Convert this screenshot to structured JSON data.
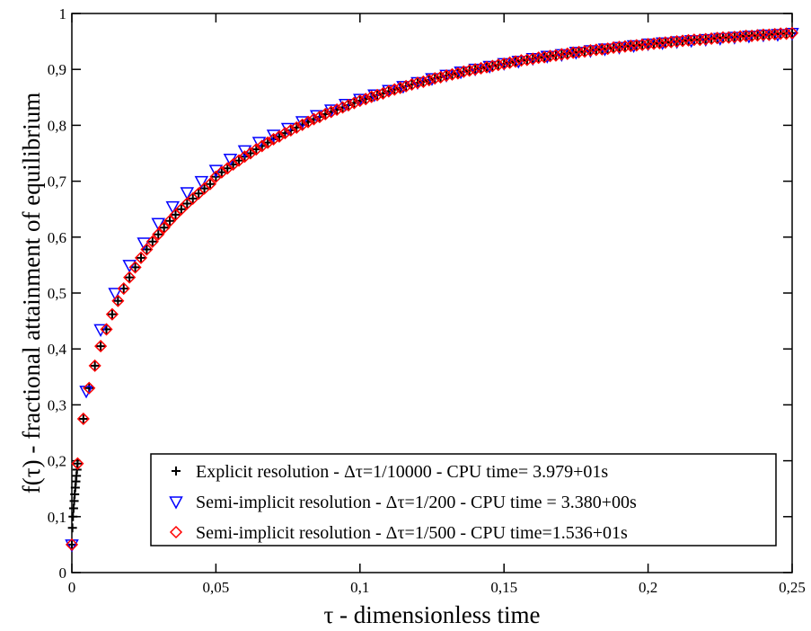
{
  "chart_data": {
    "type": "scatter",
    "x_label": "τ - dimensionless time",
    "y_label": "f(τ) - fractional attainment of equilibrium",
    "xlim": [
      0,
      0.25
    ],
    "ylim": [
      0,
      1
    ],
    "xticks": [
      0,
      {
        "value": 0.05,
        "label": "0,05"
      },
      {
        "value": 0.1,
        "label": "0,1"
      },
      {
        "value": 0.15,
        "label": "0,15"
      },
      {
        "value": 0.2,
        "label": "0,2"
      },
      {
        "value": 0.25,
        "label": "0,25"
      }
    ],
    "yticks": [
      0,
      {
        "value": 0.1,
        "label": "0,1"
      },
      {
        "value": 0.2,
        "label": "0,2"
      },
      {
        "value": 0.3,
        "label": "0,3"
      },
      {
        "value": 0.4,
        "label": "0,4"
      },
      {
        "value": 0.5,
        "label": "0,5"
      },
      {
        "value": 0.6,
        "label": "0,6"
      },
      {
        "value": 0.7,
        "label": "0,7"
      },
      {
        "value": 0.8,
        "label": "0,8"
      },
      {
        "value": 0.9,
        "label": "0,9"
      },
      1
    ],
    "series": [
      {
        "name": "Explicit resolution - Δτ=1/10000 - CPU time= 3.979+01s",
        "color": "#000000",
        "marker": "plus",
        "x": [
          0,
          0.0002,
          0.0004,
          0.0006,
          0.0008,
          0.001,
          0.0012,
          0.0014,
          0.0016,
          0.0018,
          0.002,
          0.004,
          0.006,
          0.008,
          0.01,
          0.012,
          0.014,
          0.016,
          0.018,
          0.02,
          0.022,
          0.024,
          0.026,
          0.028,
          0.03,
          0.032,
          0.034,
          0.036,
          0.038,
          0.04,
          0.042,
          0.044,
          0.046,
          0.048,
          0.05,
          0.052,
          0.054,
          0.056,
          0.058,
          0.06,
          0.062,
          0.064,
          0.066,
          0.068,
          0.07,
          0.072,
          0.074,
          0.076,
          0.078,
          0.08,
          0.082,
          0.084,
          0.086,
          0.088,
          0.09,
          0.092,
          0.094,
          0.096,
          0.098,
          0.1,
          0.102,
          0.104,
          0.106,
          0.108,
          0.11,
          0.112,
          0.114,
          0.116,
          0.118,
          0.12,
          0.122,
          0.124,
          0.126,
          0.128,
          0.13,
          0.132,
          0.134,
          0.136,
          0.138,
          0.14,
          0.142,
          0.144,
          0.146,
          0.148,
          0.15,
          0.152,
          0.154,
          0.156,
          0.158,
          0.16,
          0.162,
          0.164,
          0.166,
          0.168,
          0.17,
          0.172,
          0.174,
          0.176,
          0.178,
          0.18,
          0.182,
          0.184,
          0.186,
          0.188,
          0.19,
          0.192,
          0.194,
          0.196,
          0.198,
          0.2,
          0.202,
          0.204,
          0.206,
          0.208,
          0.21,
          0.212,
          0.214,
          0.216,
          0.218,
          0.22,
          0.222,
          0.224,
          0.226,
          0.228,
          0.23,
          0.232,
          0.234,
          0.236,
          0.238,
          0.24,
          0.242,
          0.244,
          0.246,
          0.248,
          0.25
        ],
        "values": [
          0.05,
          0.08,
          0.1,
          0.115,
          0.128,
          0.14,
          0.152,
          0.163,
          0.173,
          0.184,
          0.195,
          0.275,
          0.33,
          0.37,
          0.405,
          0.435,
          0.462,
          0.486,
          0.508,
          0.528,
          0.546,
          0.563,
          0.578,
          0.592,
          0.605,
          0.617,
          0.629,
          0.64,
          0.65,
          0.66,
          0.669,
          0.678,
          0.687,
          0.695,
          0.708,
          0.716,
          0.723,
          0.73,
          0.737,
          0.744,
          0.75,
          0.757,
          0.763,
          0.769,
          0.775,
          0.78,
          0.786,
          0.791,
          0.796,
          0.801,
          0.806,
          0.811,
          0.815,
          0.82,
          0.824,
          0.828,
          0.832,
          0.836,
          0.84,
          0.844,
          0.847,
          0.851,
          0.854,
          0.857,
          0.861,
          0.864,
          0.867,
          0.87,
          0.873,
          0.876,
          0.878,
          0.881,
          0.884,
          0.886,
          0.889,
          0.891,
          0.893,
          0.896,
          0.898,
          0.9,
          0.902,
          0.904,
          0.906,
          0.908,
          0.91,
          0.912,
          0.914,
          0.916,
          0.917,
          0.919,
          0.921,
          0.922,
          0.924,
          0.925,
          0.927,
          0.928,
          0.93,
          0.931,
          0.932,
          0.934,
          0.935,
          0.936,
          0.937,
          0.939,
          0.94,
          0.941,
          0.942,
          0.943,
          0.944,
          0.945,
          0.946,
          0.947,
          0.948,
          0.949,
          0.95,
          0.951,
          0.952,
          0.953,
          0.953,
          0.954,
          0.955,
          0.956,
          0.957,
          0.957,
          0.958,
          0.959,
          0.96,
          0.96,
          0.961,
          0.962,
          0.962,
          0.963,
          0.964,
          0.964,
          0.965
        ]
      },
      {
        "name": "Semi-implicit resolution - Δτ=1/200 - CPU time = 3.380+00s",
        "color": "#0000ff",
        "marker": "triangle-down",
        "x": [
          0,
          0.005,
          0.01,
          0.015,
          0.02,
          0.025,
          0.03,
          0.035,
          0.04,
          0.045,
          0.05,
          0.055,
          0.06,
          0.065,
          0.07,
          0.075,
          0.08,
          0.085,
          0.09,
          0.095,
          0.1,
          0.105,
          0.11,
          0.115,
          0.12,
          0.125,
          0.13,
          0.135,
          0.14,
          0.145,
          0.15,
          0.155,
          0.16,
          0.165,
          0.17,
          0.175,
          0.18,
          0.185,
          0.19,
          0.195,
          0.2,
          0.205,
          0.21,
          0.215,
          0.22,
          0.225,
          0.23,
          0.235,
          0.24,
          0.245,
          0.25
        ],
        "values": [
          0.05,
          0.325,
          0.435,
          0.5,
          0.55,
          0.59,
          0.625,
          0.655,
          0.68,
          0.7,
          0.72,
          0.74,
          0.755,
          0.77,
          0.783,
          0.795,
          0.807,
          0.818,
          0.828,
          0.838,
          0.847,
          0.855,
          0.863,
          0.87,
          0.877,
          0.884,
          0.89,
          0.896,
          0.901,
          0.906,
          0.911,
          0.915,
          0.92,
          0.924,
          0.927,
          0.931,
          0.934,
          0.937,
          0.94,
          0.943,
          0.946,
          0.948,
          0.95,
          0.952,
          0.954,
          0.956,
          0.958,
          0.96,
          0.962,
          0.963,
          0.965
        ]
      },
      {
        "name": "Semi-implicit resolution - Δτ=1/500 - CPU time=1.536+01s",
        "color": "#ff0000",
        "marker": "diamond",
        "x": [
          0,
          0.002,
          0.004,
          0.006,
          0.008,
          0.01,
          0.012,
          0.014,
          0.016,
          0.018,
          0.02,
          0.022,
          0.024,
          0.026,
          0.028,
          0.03,
          0.032,
          0.034,
          0.036,
          0.038,
          0.04,
          0.042,
          0.044,
          0.046,
          0.048,
          0.05,
          0.052,
          0.054,
          0.056,
          0.058,
          0.06,
          0.062,
          0.064,
          0.066,
          0.068,
          0.07,
          0.072,
          0.074,
          0.076,
          0.078,
          0.08,
          0.082,
          0.084,
          0.086,
          0.088,
          0.09,
          0.092,
          0.094,
          0.096,
          0.098,
          0.1,
          0.102,
          0.104,
          0.106,
          0.108,
          0.11,
          0.112,
          0.114,
          0.116,
          0.118,
          0.12,
          0.122,
          0.124,
          0.126,
          0.128,
          0.13,
          0.132,
          0.134,
          0.136,
          0.138,
          0.14,
          0.142,
          0.144,
          0.146,
          0.148,
          0.15,
          0.152,
          0.154,
          0.156,
          0.158,
          0.16,
          0.162,
          0.164,
          0.166,
          0.168,
          0.17,
          0.172,
          0.174,
          0.176,
          0.178,
          0.18,
          0.182,
          0.184,
          0.186,
          0.188,
          0.19,
          0.192,
          0.194,
          0.196,
          0.198,
          0.2,
          0.202,
          0.204,
          0.206,
          0.208,
          0.21,
          0.212,
          0.214,
          0.216,
          0.218,
          0.22,
          0.222,
          0.224,
          0.226,
          0.228,
          0.23,
          0.232,
          0.234,
          0.236,
          0.238,
          0.24,
          0.242,
          0.244,
          0.246,
          0.248,
          0.25
        ],
        "values": [
          0.05,
          0.195,
          0.275,
          0.33,
          0.37,
          0.405,
          0.435,
          0.462,
          0.486,
          0.508,
          0.528,
          0.546,
          0.563,
          0.578,
          0.592,
          0.605,
          0.617,
          0.629,
          0.64,
          0.65,
          0.66,
          0.669,
          0.678,
          0.687,
          0.695,
          0.708,
          0.716,
          0.723,
          0.73,
          0.737,
          0.744,
          0.75,
          0.757,
          0.763,
          0.769,
          0.775,
          0.78,
          0.786,
          0.791,
          0.796,
          0.801,
          0.806,
          0.811,
          0.815,
          0.82,
          0.824,
          0.828,
          0.832,
          0.836,
          0.84,
          0.844,
          0.847,
          0.851,
          0.854,
          0.857,
          0.861,
          0.864,
          0.867,
          0.87,
          0.873,
          0.876,
          0.878,
          0.881,
          0.884,
          0.886,
          0.889,
          0.891,
          0.893,
          0.896,
          0.898,
          0.9,
          0.902,
          0.904,
          0.906,
          0.908,
          0.91,
          0.912,
          0.914,
          0.916,
          0.917,
          0.919,
          0.921,
          0.922,
          0.924,
          0.925,
          0.927,
          0.928,
          0.93,
          0.931,
          0.932,
          0.934,
          0.935,
          0.936,
          0.937,
          0.939,
          0.94,
          0.941,
          0.942,
          0.943,
          0.944,
          0.945,
          0.946,
          0.947,
          0.948,
          0.949,
          0.95,
          0.951,
          0.952,
          0.953,
          0.953,
          0.954,
          0.955,
          0.956,
          0.957,
          0.957,
          0.958,
          0.959,
          0.96,
          0.96,
          0.961,
          0.962,
          0.962,
          0.963,
          0.964,
          0.964,
          0.965
        ]
      }
    ]
  }
}
